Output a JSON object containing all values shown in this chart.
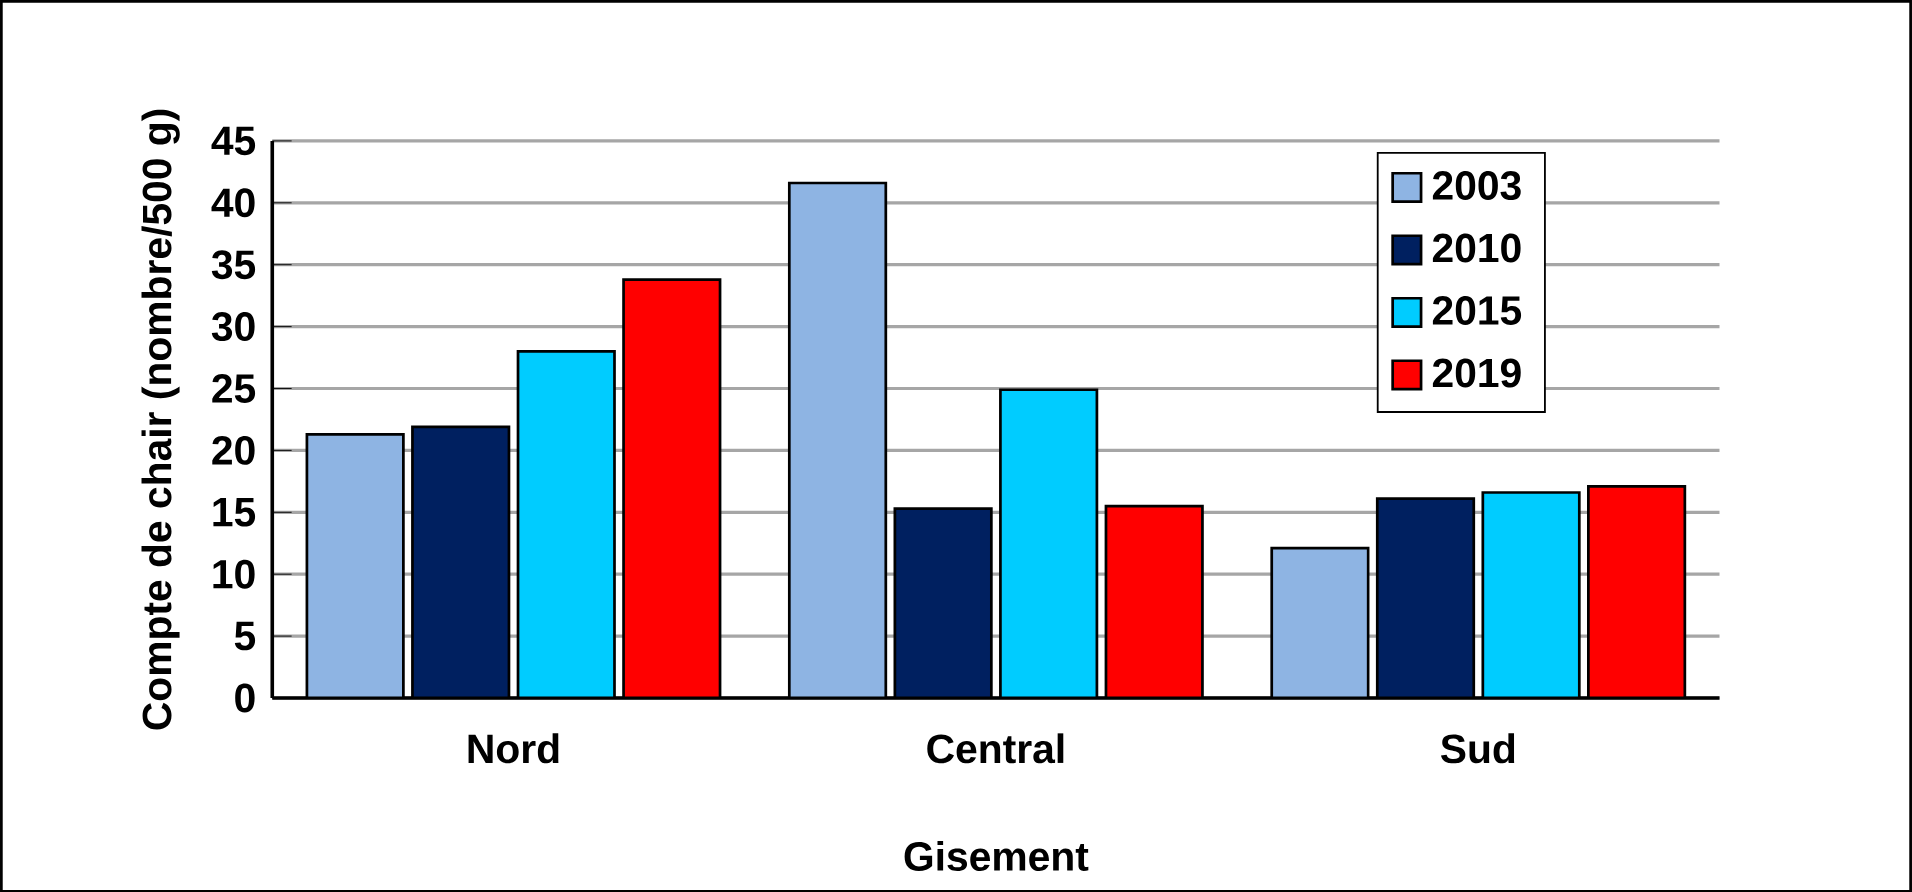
{
  "chart_data": {
    "type": "bar",
    "xlabel": "Gisement",
    "ylabel": "Compte de chair (nombre/500 g)",
    "categories": [
      "Nord",
      "Central",
      "Sud"
    ],
    "series": [
      {
        "name": "2003",
        "color": "#8eb4e3",
        "values": [
          21.3,
          41.6,
          12.1
        ]
      },
      {
        "name": "2010",
        "color": "#002060",
        "values": [
          21.9,
          15.3,
          16.1
        ]
      },
      {
        "name": "2015",
        "color": "#00ccff",
        "values": [
          28.0,
          24.9,
          16.6
        ]
      },
      {
        "name": "2019",
        "color": "#ff0000",
        "values": [
          33.8,
          15.5,
          17.1
        ]
      }
    ],
    "ylim": [
      0,
      45
    ],
    "yticks": [
      0,
      5,
      10,
      15,
      20,
      25,
      30,
      35,
      40,
      45
    ],
    "grid": "y",
    "legend": "top right"
  }
}
